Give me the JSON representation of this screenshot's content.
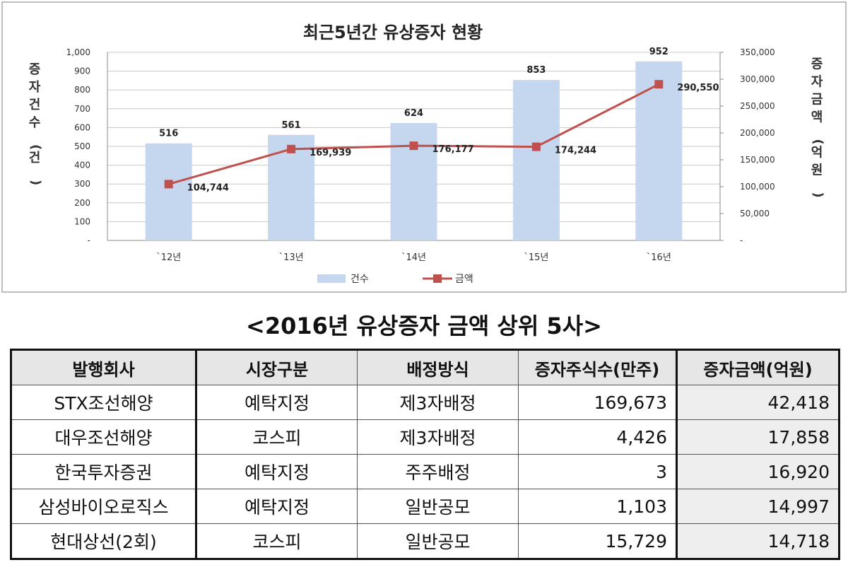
{
  "chart_data": {
    "type": "bar+line",
    "title": "최근5년간 유상증자 현황",
    "categories": [
      "`12년",
      "`13년",
      "`14년",
      "`15년",
      "`16년"
    ],
    "series": [
      {
        "name": "건수",
        "type": "bar",
        "axis": "left",
        "values": [
          516,
          561,
          624,
          853,
          952
        ],
        "labels": [
          "516",
          "561",
          "624",
          "853",
          "952"
        ],
        "color": "#c5d7ef"
      },
      {
        "name": "금액",
        "type": "line",
        "axis": "right",
        "values": [
          104744,
          169939,
          176177,
          174244,
          290550
        ],
        "labels": [
          "104,744",
          "169,939",
          "176,177",
          "174,244",
          "290,550"
        ],
        "color": "#c0504d"
      }
    ],
    "y_left": {
      "label": "증자건수(건)",
      "ylim": [
        0,
        1000
      ],
      "ticks": [
        "-",
        "100",
        "200",
        "300",
        "400",
        "500",
        "600",
        "700",
        "800",
        "900",
        "1,000"
      ]
    },
    "y_right": {
      "label": "증자금액(억원)",
      "ylim": [
        0,
        350000
      ],
      "ticks": [
        "-",
        "50,000",
        "100,000",
        "150,000",
        "200,000",
        "250,000",
        "300,000",
        "350,000"
      ]
    },
    "grid": true,
    "legend": "bottom"
  },
  "table": {
    "title": "<2016년 유상증자 금액 상위 5사>",
    "headers": [
      "발행회사",
      "시장구분",
      "배정방식",
      "증자주식수(만주)",
      "증자금액(억원)"
    ],
    "rows": [
      [
        "STX조선해양",
        "예탁지정",
        "제3자배정",
        "169,673",
        "42,418"
      ],
      [
        "대우조선해양",
        "코스피",
        "제3자배정",
        "4,426",
        "17,858"
      ],
      [
        "한국투자증권",
        "예탁지정",
        "주주배정",
        "3",
        "16,920"
      ],
      [
        "삼성바이오로직스",
        "예탁지정",
        "일반공모",
        "1,103",
        "14,997"
      ],
      [
        "현대상선(2회)",
        "코스피",
        "일반공모",
        "15,729",
        "14,718"
      ]
    ]
  }
}
